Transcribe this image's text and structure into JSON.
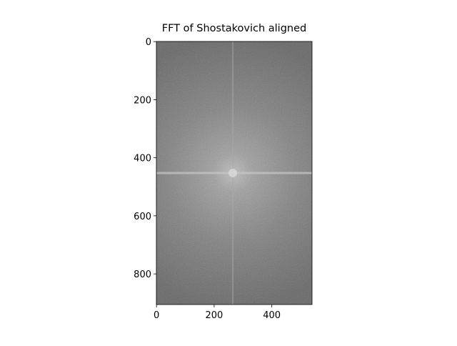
{
  "chart_data": {
    "type": "image",
    "title": "FFT of Shostakovich aligned",
    "xlim": [
      -0.5,
      539.5
    ],
    "ylim": [
      905.5,
      -0.5
    ],
    "xticks": [
      0,
      200,
      400
    ],
    "yticks": [
      0,
      200,
      400,
      600,
      800
    ],
    "colormap": "gray"
  }
}
